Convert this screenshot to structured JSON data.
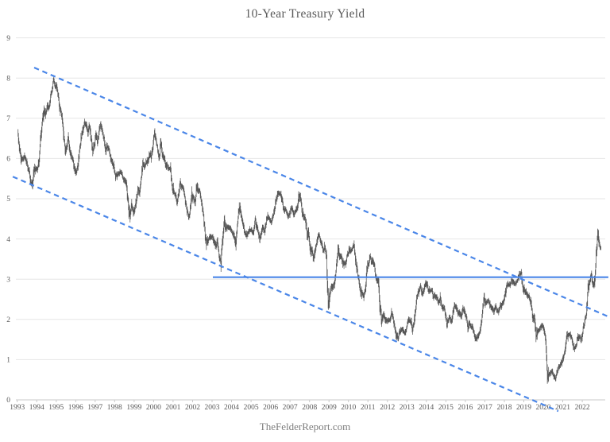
{
  "page": {
    "title": "10-Year Treasury Yield",
    "attribution": "TheFelderReport.com"
  },
  "chart_data": {
    "type": "line",
    "title": "10-Year Treasury Yield",
    "source": "TheFelderReport.com",
    "xlabel": "",
    "ylabel": "",
    "unit": "percent",
    "grid": true,
    "legend": false,
    "ylim": [
      0,
      9
    ],
    "y_ticks": [
      0,
      1,
      2,
      3,
      4,
      5,
      6,
      7,
      8,
      9
    ],
    "x_ticks": [
      1993,
      1994,
      1995,
      1996,
      1997,
      1998,
      1999,
      2000,
      2001,
      2002,
      2003,
      2004,
      2005,
      2006,
      2007,
      2008,
      2009,
      2010,
      2011,
      2012,
      2013,
      2014,
      2015,
      2016,
      2017,
      2018,
      2019,
      2020,
      2021,
      2022
    ],
    "series": [
      {
        "name": "10-Year Treasury Yield",
        "frequency": "monthly",
        "start_year": 1993,
        "points_per_year": 12,
        "values": [
          6.6,
          6.26,
          5.98,
          5.97,
          6.04,
          5.96,
          5.81,
          5.68,
          5.36,
          5.33,
          5.72,
          5.77,
          5.75,
          5.97,
          6.48,
          6.97,
          7.18,
          7.1,
          7.3,
          7.24,
          7.46,
          7.74,
          7.96,
          7.81,
          7.78,
          7.47,
          7.2,
          7.06,
          6.63,
          6.17,
          6.28,
          6.49,
          6.2,
          6.04,
          5.93,
          5.71,
          5.65,
          5.81,
          6.27,
          6.51,
          6.74,
          6.91,
          6.87,
          6.64,
          6.83,
          6.53,
          6.2,
          6.3,
          6.58,
          6.42,
          6.69,
          6.89,
          6.71,
          6.49,
          6.22,
          6.3,
          6.21,
          6.03,
          5.88,
          5.81,
          5.54,
          5.57,
          5.65,
          5.64,
          5.65,
          5.5,
          5.46,
          5.34,
          4.81,
          4.53,
          4.83,
          4.65,
          4.72,
          5.0,
          5.23,
          5.18,
          5.54,
          5.9,
          5.79,
          5.94,
          5.92,
          6.11,
          6.03,
          6.28,
          6.66,
          6.52,
          6.26,
          5.99,
          6.44,
          6.1,
          6.05,
          5.83,
          5.8,
          5.74,
          5.72,
          5.24,
          5.16,
          5.1,
          4.89,
          5.14,
          5.39,
          5.28,
          5.24,
          4.97,
          4.73,
          4.57,
          4.65,
          5.09,
          5.04,
          4.91,
          5.28,
          5.21,
          5.16,
          4.93,
          4.65,
          4.26,
          3.87,
          3.94,
          4.05,
          4.03,
          4.05,
          3.9,
          3.81,
          3.96,
          3.57,
          3.33,
          3.98,
          4.45,
          4.27,
          4.29,
          4.3,
          4.27,
          4.15,
          4.08,
          3.83,
          4.35,
          4.72,
          4.73,
          4.5,
          4.28,
          4.13,
          4.1,
          4.19,
          4.23,
          4.22,
          4.17,
          4.5,
          4.34,
          4.14,
          4.0,
          4.18,
          4.26,
          4.2,
          4.46,
          4.54,
          4.47,
          4.42,
          4.57,
          4.72,
          4.99,
          5.11,
          5.11,
          5.09,
          4.88,
          4.72,
          4.73,
          4.6,
          4.56,
          4.76,
          4.72,
          4.56,
          4.69,
          4.75,
          5.1,
          5.0,
          4.67,
          4.52,
          4.53,
          4.15,
          4.1,
          3.74,
          3.74,
          3.51,
          3.68,
          3.88,
          4.1,
          4.01,
          3.89,
          3.69,
          3.81,
          3.53,
          2.42,
          2.52,
          2.87,
          2.82,
          2.93,
          3.29,
          3.72,
          3.56,
          3.59,
          3.4,
          3.39,
          3.4,
          3.59,
          3.73,
          3.69,
          3.73,
          3.85,
          3.42,
          3.2,
          3.01,
          2.7,
          2.65,
          2.54,
          2.76,
          3.29,
          3.39,
          3.58,
          3.41,
          3.46,
          3.17,
          3.0,
          3.0,
          2.3,
          1.98,
          2.15,
          2.01,
          1.98,
          1.97,
          1.97,
          2.17,
          2.05,
          1.8,
          1.62,
          1.53,
          1.68,
          1.72,
          1.75,
          1.65,
          1.72,
          1.91,
          1.98,
          1.96,
          1.76,
          1.93,
          2.3,
          2.58,
          2.74,
          2.81,
          2.62,
          2.72,
          2.9,
          2.86,
          2.71,
          2.72,
          2.71,
          2.56,
          2.6,
          2.54,
          2.42,
          2.53,
          2.3,
          2.33,
          2.21,
          1.88,
          1.98,
          2.04,
          1.94,
          2.2,
          2.36,
          2.32,
          2.17,
          2.17,
          2.07,
          2.26,
          2.24,
          2.09,
          1.78,
          1.89,
          1.81,
          1.81,
          1.64,
          1.5,
          1.56,
          1.63,
          1.76,
          2.14,
          2.49,
          2.43,
          2.42,
          2.48,
          2.3,
          2.3,
          2.19,
          2.32,
          2.21,
          2.2,
          2.36,
          2.35,
          2.4,
          2.58,
          2.86,
          2.84,
          2.87,
          2.98,
          2.91,
          2.89,
          2.89,
          3.0,
          3.15,
          3.12,
          2.83,
          2.71,
          2.68,
          2.57,
          2.53,
          2.4,
          2.07,
          2.06,
          1.63,
          1.7,
          1.71,
          1.81,
          1.86,
          1.76,
          1.5,
          0.7,
          0.62,
          0.67,
          0.7,
          0.6,
          0.55,
          0.68,
          0.79,
          0.87,
          0.93,
          1.08,
          1.26,
          1.61,
          1.64,
          1.62,
          1.52,
          1.32,
          1.28,
          1.37,
          1.58,
          1.56,
          1.47,
          1.76,
          1.93,
          2.13,
          2.75,
          2.9,
          3.14,
          2.9,
          2.9,
          3.52,
          4.1,
          3.89,
          3.75
        ]
      }
    ],
    "annotations": {
      "trend_channel_upper_dashed": {
        "from": [
          1993.87,
          8.26
        ],
        "to": [
          2023.34,
          2.07
        ]
      },
      "trend_channel_lower_dashed": {
        "from": [
          1992.77,
          5.55
        ],
        "to": [
          2020.77,
          -0.28
        ]
      },
      "horizontal_resistance_line": {
        "level": 3.05,
        "from": [
          2003.04,
          3.05
        ],
        "to": [
          2023.34,
          3.05
        ]
      }
    },
    "colors": {
      "series": "#575757",
      "trend_lines": "#4a86e8",
      "gridline": "#e6e6e6",
      "axis_line": "#c9c9c9",
      "tick_label": "#595959",
      "title": "#595959",
      "source": "#7d7d7d",
      "background": "#ffffff"
    }
  }
}
